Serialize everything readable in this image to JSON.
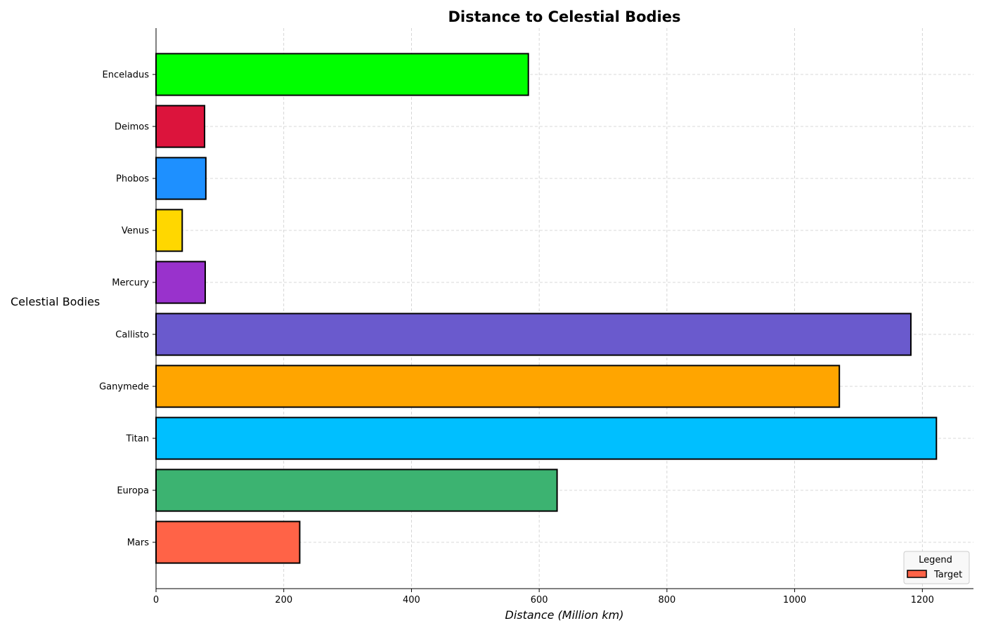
{
  "chart_data": {
    "type": "bar",
    "orientation": "horizontal",
    "title": "Distance to Celestial Bodies",
    "xlabel": "Distance (Million km)",
    "ylabel": "Celestial Bodies",
    "xlim": [
      0,
      1280
    ],
    "xticks": [
      0,
      200,
      400,
      600,
      800,
      1000,
      1200
    ],
    "categories": [
      "Mars",
      "Europa",
      "Titan",
      "Ganymede",
      "Callisto",
      "Mercury",
      "Venus",
      "Phobos",
      "Deimos",
      "Enceladus"
    ],
    "values": [
      225,
      628,
      1222,
      1070,
      1182,
      77,
      41,
      78,
      76,
      583
    ],
    "colors": [
      "#FF6347",
      "#3CB371",
      "#00BFFF",
      "#FFA500",
      "#6A5ACD",
      "#9932CC",
      "#FFD700",
      "#1E90FF",
      "#DC143C",
      "#00FF00"
    ],
    "grid": true,
    "legend": {
      "title": "Legend",
      "position": "lower-right",
      "entries": [
        {
          "label": "Target",
          "color": "#FF6347"
        }
      ]
    }
  }
}
